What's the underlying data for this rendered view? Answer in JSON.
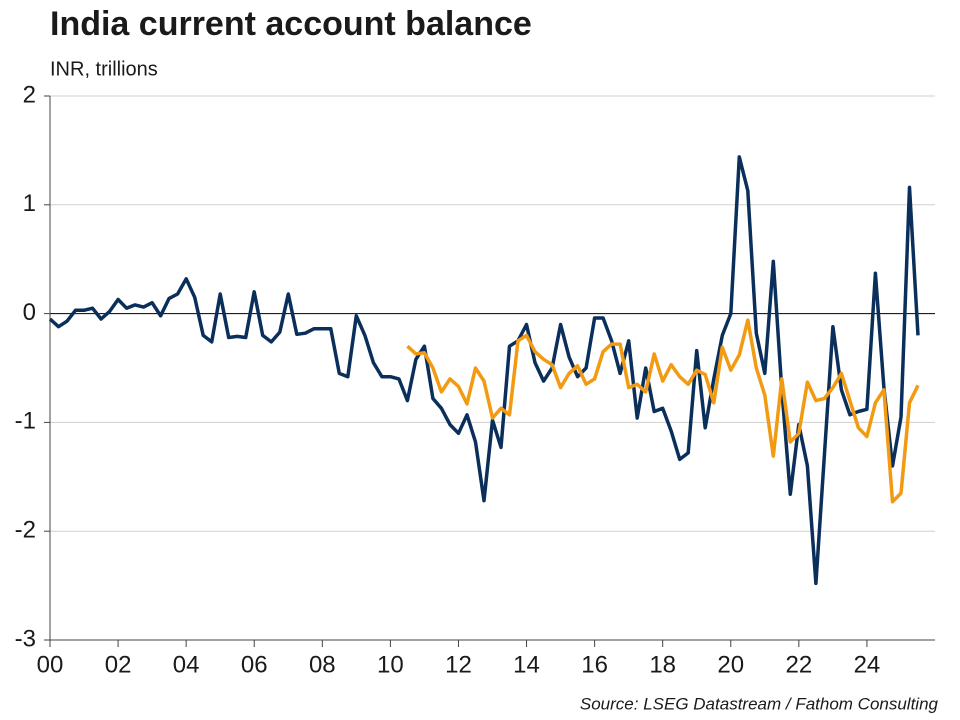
{
  "chart_data": {
    "type": "line",
    "title": "India current account balance",
    "subtitle": "INR, trillions",
    "source": "Source: LSEG Datastream / Fathom Consulting",
    "x": [
      0,
      0.25,
      0.5,
      0.75,
      1,
      1.25,
      1.5,
      1.75,
      2,
      2.25,
      2.5,
      2.75,
      3,
      3.25,
      3.5,
      3.75,
      4,
      4.25,
      4.5,
      4.75,
      5,
      5.25,
      5.5,
      5.75,
      6,
      6.25,
      6.5,
      6.75,
      7,
      7.25,
      7.5,
      7.75,
      8,
      8.25,
      8.5,
      8.75,
      9,
      9.25,
      9.5,
      9.75,
      10,
      10.25,
      10.5,
      10.75,
      11,
      11.25,
      11.5,
      11.75,
      12,
      12.25,
      12.5,
      12.75,
      13,
      13.25,
      13.5,
      13.75,
      14,
      14.25,
      14.5,
      14.75,
      15,
      15.25,
      15.5,
      15.75,
      16,
      16.25,
      16.5,
      16.75,
      17,
      17.25,
      17.5,
      17.75,
      18,
      18.25,
      18.5,
      18.75,
      19,
      19.25,
      19.5,
      19.75,
      20,
      20.25,
      20.5,
      20.75,
      21,
      21.25,
      21.5,
      21.75,
      22,
      22.25,
      22.5,
      22.75,
      23,
      23.25,
      23.5,
      23.75,
      24,
      24.25,
      24.5,
      24.75,
      25,
      25.25,
      25.5
    ],
    "series": [
      {
        "color": "#0b2f5b",
        "values": [
          -0.05,
          -0.12,
          -0.07,
          0.03,
          0.03,
          0.05,
          -0.05,
          0.02,
          0.13,
          0.05,
          0.08,
          0.06,
          0.1,
          -0.02,
          0.14,
          0.18,
          0.32,
          0.15,
          -0.2,
          -0.26,
          0.18,
          -0.22,
          -0.21,
          -0.22,
          0.2,
          -0.2,
          -0.26,
          -0.17,
          0.18,
          -0.19,
          -0.18,
          -0.14,
          -0.14,
          -0.14,
          -0.55,
          -0.58,
          -0.02,
          -0.2,
          -0.45,
          -0.58,
          -0.58,
          -0.6,
          -0.8,
          -0.42,
          -0.3,
          -0.78,
          -0.87,
          -1.02,
          -1.1,
          -0.93,
          -1.18,
          -1.72,
          -0.98,
          -1.23,
          -0.3,
          -0.25,
          -0.1,
          -0.45,
          -0.62,
          -0.5,
          -0.1,
          -0.4,
          -0.58,
          -0.5,
          -0.04,
          -0.04,
          -0.25,
          -0.55,
          -0.25,
          -0.96,
          -0.5,
          -0.9,
          -0.87,
          -1.08,
          -1.34,
          -1.28,
          -0.34,
          -1.05,
          -0.6,
          -0.2,
          0.0,
          1.44,
          1.13,
          -0.18,
          -0.55,
          0.48,
          -0.7,
          -1.66,
          -1.02,
          -1.4,
          -2.48,
          -1.3,
          -0.12,
          -0.7,
          -0.93,
          -0.9,
          -0.88,
          0.37,
          -0.68,
          -1.4,
          -0.95,
          1.16,
          -0.2
        ]
      },
      {
        "color": "#f29a12",
        "values": [
          null,
          null,
          null,
          null,
          null,
          null,
          null,
          null,
          null,
          null,
          null,
          null,
          null,
          null,
          null,
          null,
          null,
          null,
          null,
          null,
          null,
          null,
          null,
          null,
          null,
          null,
          null,
          null,
          null,
          null,
          null,
          null,
          null,
          null,
          null,
          null,
          null,
          null,
          null,
          null,
          null,
          null,
          -0.3,
          -0.37,
          -0.36,
          -0.5,
          -0.72,
          -0.6,
          -0.67,
          -0.83,
          -0.5,
          -0.62,
          -0.96,
          -0.87,
          -0.93,
          -0.25,
          -0.2,
          -0.35,
          -0.42,
          -0.47,
          -0.68,
          -0.55,
          -0.48,
          -0.65,
          -0.6,
          -0.35,
          -0.28,
          -0.28,
          -0.68,
          -0.65,
          -0.72,
          -0.37,
          -0.62,
          -0.47,
          -0.58,
          -0.65,
          -0.52,
          -0.56,
          -0.82,
          -0.31,
          -0.52,
          -0.38,
          -0.06,
          -0.5,
          -0.75,
          -1.31,
          -0.6,
          -1.18,
          -1.1,
          -0.63,
          -0.8,
          -0.78,
          -0.68,
          -0.55,
          -0.8,
          -1.05,
          -1.13,
          -0.82,
          -0.7,
          -1.73,
          -1.65,
          -0.82,
          -0.66
        ]
      }
    ],
    "xlim": [
      0,
      26
    ],
    "xticks": [
      {
        "value": 0,
        "label": "00"
      },
      {
        "value": 2,
        "label": "02"
      },
      {
        "value": 4,
        "label": "04"
      },
      {
        "value": 6,
        "label": "06"
      },
      {
        "value": 8,
        "label": "08"
      },
      10,
      12,
      14,
      16,
      18,
      20,
      22,
      24
    ],
    "ylim": [
      -3,
      2
    ],
    "yticks": [
      -3,
      -2,
      -1,
      0,
      1,
      2
    ],
    "grid": true
  }
}
